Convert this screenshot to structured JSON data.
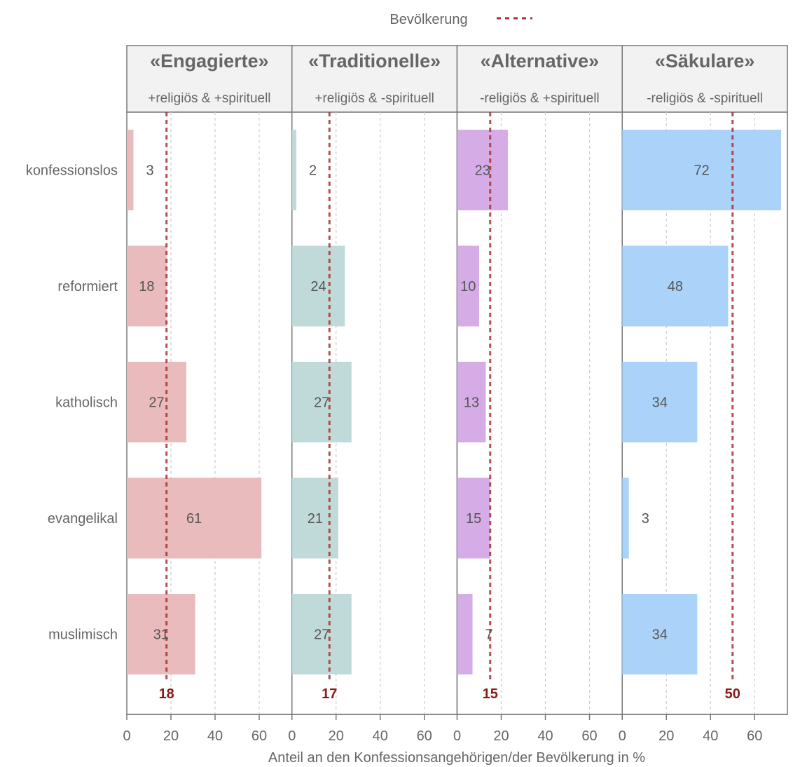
{
  "chart_data": {
    "type": "bar",
    "orientation": "horizontal",
    "facet": "columns",
    "legend": {
      "label": "Bevölkerung",
      "style": "dashed",
      "color": "#a83232",
      "placement": "top-center"
    },
    "categories": [
      "konfessionslos",
      "reformiert",
      "katholisch",
      "evangelikal",
      "muslimisch"
    ],
    "panels": [
      {
        "title": "«Engagierte»",
        "subtitle": "+religiös & +spirituell",
        "color": "#e8b7b8",
        "values": [
          3,
          18,
          27,
          61,
          31
        ],
        "population": 18
      },
      {
        "title": "«Traditionelle»",
        "subtitle": "+religiös & -spirituell",
        "color": "#bdd8d8",
        "values": [
          2,
          24,
          27,
          21,
          27
        ],
        "population": 17
      },
      {
        "title": "«Alternative»",
        "subtitle": "-religiös & +spirituell",
        "color": "#d4a8e6",
        "values": [
          23,
          10,
          13,
          15,
          7
        ],
        "population": 15
      },
      {
        "title": "«Säkulare»",
        "subtitle": "-religiös & -spirituell",
        "color": "#a6d1fa",
        "values": [
          72,
          48,
          34,
          3,
          34
        ],
        "population": 50
      }
    ],
    "xticks": [
      0,
      20,
      40,
      60
    ],
    "xlim": [
      0,
      75
    ],
    "xlabel": "Anteil an den Konfessionsangehörigen/der Bevölkerung in %",
    "ylabel": "",
    "grid": true,
    "population_line_color": "#a83232",
    "population_label_color": "#8b1a1a"
  }
}
